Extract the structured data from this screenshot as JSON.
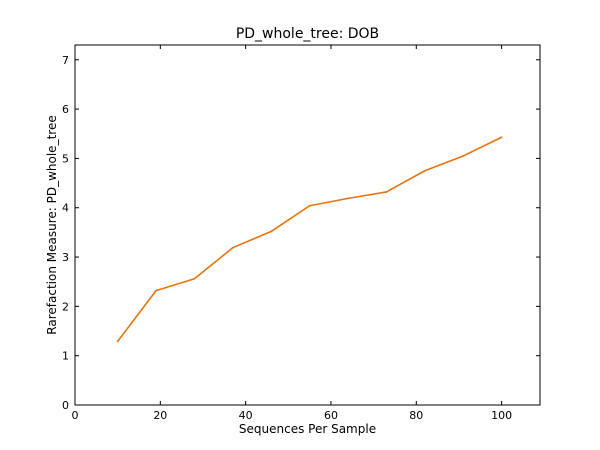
{
  "chart_data": {
    "type": "line",
    "title": "PD_whole_tree: DOB",
    "xlabel": "Sequences Per Sample",
    "ylabel": "Rarefaction Measure: PD_whole_tree",
    "xlim": [
      0,
      109
    ],
    "ylim": [
      0,
      7.3
    ],
    "xticks": [
      0,
      20,
      40,
      60,
      80,
      100
    ],
    "yticks": [
      0,
      1,
      2,
      3,
      4,
      5,
      6,
      7
    ],
    "grid": false,
    "series": [
      {
        "color": "#e8730e",
        "x": [
          10,
          19,
          28,
          37,
          46,
          55,
          64,
          73,
          82,
          91,
          100
        ],
        "y": [
          1.29,
          2.32,
          2.56,
          3.19,
          3.52,
          4.04,
          4.19,
          4.32,
          4.75,
          5.05,
          5.43
        ]
      }
    ]
  }
}
